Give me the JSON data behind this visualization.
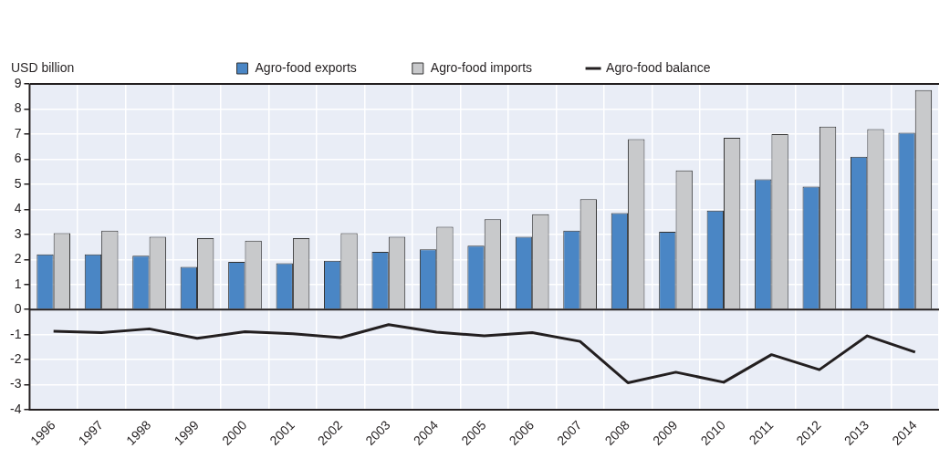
{
  "chart_data": {
    "type": "bar",
    "ylabel": "USD billion",
    "categories": [
      "1996",
      "1997",
      "1998",
      "1999",
      "2000",
      "2001",
      "2002",
      "2003",
      "2004",
      "2005",
      "2006",
      "2007",
      "2008",
      "2009",
      "2010",
      "2011",
      "2012",
      "2013",
      "2014"
    ],
    "series": [
      {
        "name": "Agro-food exports",
        "color": "#4a86c5",
        "values": [
          2.2,
          2.2,
          2.15,
          1.7,
          1.9,
          1.85,
          1.95,
          2.3,
          2.4,
          2.55,
          2.9,
          3.15,
          3.85,
          3.1,
          3.95,
          5.2,
          4.9,
          6.1,
          7.05
        ]
      },
      {
        "name": "Agro-food imports",
        "color": "#c8c9cb",
        "values": [
          3.05,
          3.15,
          2.9,
          2.85,
          2.75,
          2.85,
          3.05,
          2.9,
          3.3,
          3.6,
          3.8,
          4.4,
          6.8,
          5.55,
          6.85,
          7.0,
          7.3,
          7.2,
          8.75
        ]
      },
      {
        "name": "Agro-food balance",
        "type": "line",
        "color": "#231f20",
        "values": [
          -0.87,
          -0.92,
          -0.77,
          -1.15,
          -0.88,
          -0.97,
          -1.12,
          -0.6,
          -0.9,
          -1.05,
          -0.92,
          -1.27,
          -2.92,
          -2.5,
          -2.9,
          -1.8,
          -2.4,
          -1.05,
          -1.7
        ]
      }
    ],
    "ylim": [
      -4,
      9
    ],
    "yticks": [
      -4,
      -3,
      -2,
      -1,
      0,
      1,
      2,
      3,
      4,
      5,
      6,
      7,
      8,
      9
    ],
    "grid": true,
    "legend": "top",
    "marker": "none",
    "line_style": "solid"
  }
}
